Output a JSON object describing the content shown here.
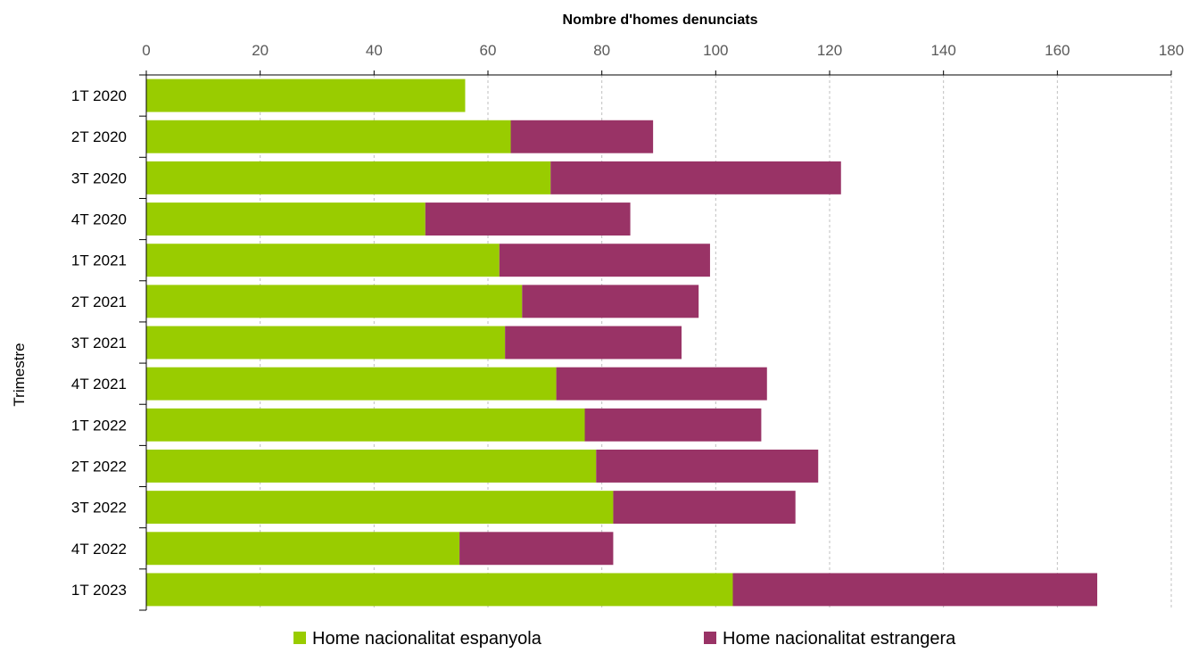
{
  "chart_data": {
    "type": "bar",
    "orientation": "horizontal",
    "stacked": true,
    "xlabel": "Nombre d'homes denunciats",
    "ylabel": "Trimestre",
    "xlim": [
      0,
      180
    ],
    "xticks": [
      "0",
      "20",
      "40",
      "60",
      "80",
      "100",
      "120",
      "140",
      "160",
      "180"
    ],
    "x_axis_position": "top",
    "grid": "vertical dashed",
    "legend_position": "bottom",
    "categories": [
      "1T 2020",
      "2T 2020",
      "3T 2020",
      "4T 2020",
      "1T 2021",
      "2T 2021",
      "3T 2021",
      "4T 2021",
      "1T 2022",
      "2T 2022",
      "3T 2022",
      "4T 2022",
      "1T 2023"
    ],
    "series": [
      {
        "name": "Home nacionalitat espanyola",
        "color": "#99cc00",
        "values": [
          56,
          64,
          71,
          49,
          62,
          66,
          63,
          72,
          77,
          79,
          82,
          55,
          103
        ]
      },
      {
        "name": "Home nacionalitat estrangera",
        "color": "#993366",
        "values": [
          0,
          25,
          51,
          36,
          37,
          31,
          31,
          37,
          31,
          39,
          32,
          27,
          64
        ]
      }
    ]
  }
}
